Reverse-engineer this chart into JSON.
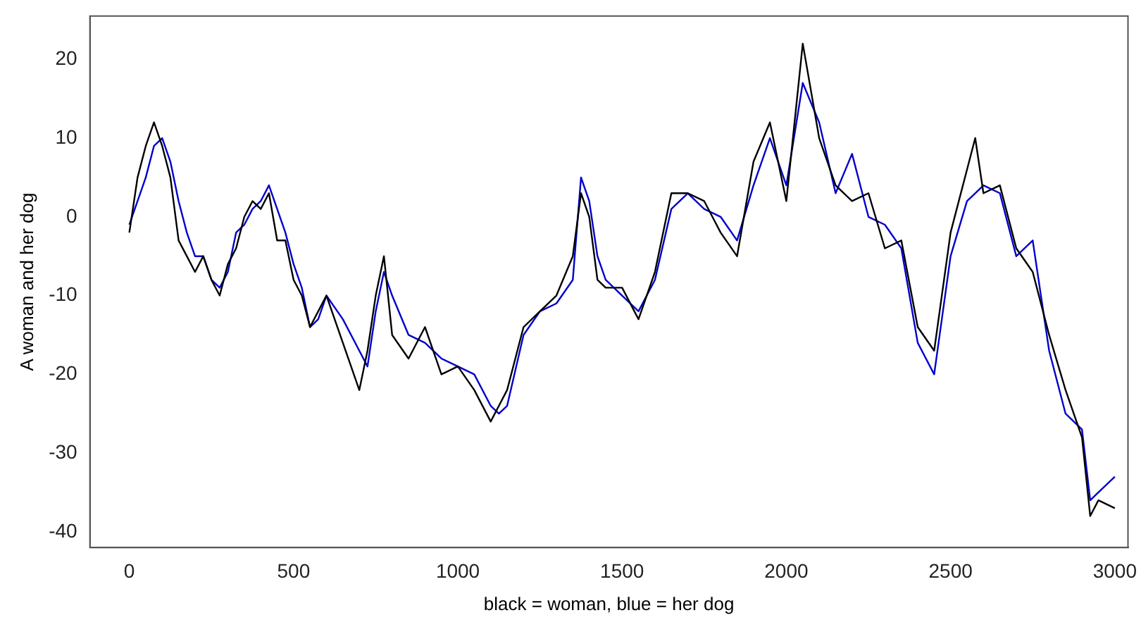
{
  "chart_data": {
    "type": "line",
    "xlabel": "black = woman, blue = her dog",
    "ylabel": "A woman and her dog",
    "xlim": [
      -120,
      3040
    ],
    "ylim": [
      -42,
      25.5
    ],
    "xticks": [
      0,
      500,
      1000,
      1500,
      2000,
      2500,
      3000
    ],
    "yticks": [
      -40,
      -30,
      -20,
      -10,
      0,
      10,
      20
    ],
    "grid": false,
    "legend": false,
    "marker": "none",
    "line_style": "solid",
    "series": [
      {
        "color": "#000000",
        "x": [
          0,
          25,
          50,
          75,
          100,
          125,
          150,
          175,
          200,
          225,
          250,
          275,
          300,
          325,
          350,
          375,
          400,
          425,
          450,
          475,
          500,
          525,
          550,
          575,
          600,
          650,
          700,
          725,
          750,
          775,
          800,
          850,
          900,
          950,
          1000,
          1050,
          1100,
          1125,
          1150,
          1200,
          1250,
          1300,
          1350,
          1375,
          1400,
          1425,
          1450,
          1500,
          1550,
          1600,
          1650,
          1700,
          1750,
          1800,
          1850,
          1900,
          1950,
          2000,
          2050,
          2100,
          2150,
          2200,
          2250,
          2300,
          2350,
          2400,
          2450,
          2500,
          2550,
          2575,
          2600,
          2650,
          2700,
          2750,
          2800,
          2850,
          2900,
          2925,
          2950,
          3000
        ],
        "values": [
          -2,
          5,
          9,
          12,
          9,
          5,
          -3,
          -5,
          -7,
          -5,
          -8,
          -10,
          -6,
          -4,
          0,
          2,
          1,
          3,
          -3,
          -3,
          -8,
          -10,
          -14,
          -12,
          -10,
          -16,
          -22,
          -17,
          -10,
          -5,
          -15,
          -18,
          -14,
          -20,
          -19,
          -22,
          -26,
          -24,
          -22,
          -14,
          -12,
          -10,
          -5,
          3,
          0,
          -8,
          -9,
          -9,
          -13,
          -7,
          3,
          3,
          2,
          -2,
          -5,
          7,
          12,
          2,
          22,
          10,
          4,
          2,
          3,
          -4,
          -3,
          -14,
          -17,
          -2,
          6,
          10,
          3,
          4,
          -4,
          -7,
          -15,
          -22,
          -28,
          -38,
          -36,
          -37
        ]
      },
      {
        "color": "#0000cc",
        "x": [
          0,
          25,
          50,
          75,
          100,
          125,
          150,
          175,
          200,
          225,
          250,
          275,
          300,
          325,
          350,
          375,
          400,
          425,
          450,
          475,
          500,
          525,
          550,
          575,
          600,
          650,
          700,
          725,
          750,
          775,
          800,
          850,
          900,
          950,
          1000,
          1050,
          1100,
          1125,
          1150,
          1200,
          1250,
          1300,
          1350,
          1375,
          1400,
          1425,
          1450,
          1500,
          1550,
          1600,
          1650,
          1700,
          1750,
          1800,
          1850,
          1900,
          1950,
          2000,
          2050,
          2100,
          2150,
          2200,
          2250,
          2300,
          2350,
          2400,
          2450,
          2500,
          2550,
          2575,
          2600,
          2650,
          2700,
          2750,
          2800,
          2850,
          2900,
          2925,
          2950,
          3000
        ],
        "values": [
          -1,
          2,
          5,
          9,
          10,
          7,
          2,
          -2,
          -5,
          -5,
          -8,
          -9,
          -7,
          -2,
          -1,
          1,
          2,
          4,
          1,
          -2,
          -6,
          -9,
          -14,
          -13,
          -10,
          -13,
          -17,
          -19,
          -12,
          -7,
          -10,
          -15,
          -16,
          -18,
          -19,
          -20,
          -24,
          -25,
          -24,
          -15,
          -12,
          -11,
          -8,
          5,
          2,
          -5,
          -8,
          -10,
          -12,
          -8,
          1,
          3,
          1,
          0,
          -3,
          4,
          10,
          4,
          17,
          12,
          3,
          8,
          0,
          -1,
          -4,
          -16,
          -20,
          -5,
          2,
          3,
          4,
          3,
          -5,
          -3,
          -17,
          -25,
          -27,
          -36,
          -35,
          -33
        ]
      }
    ]
  }
}
